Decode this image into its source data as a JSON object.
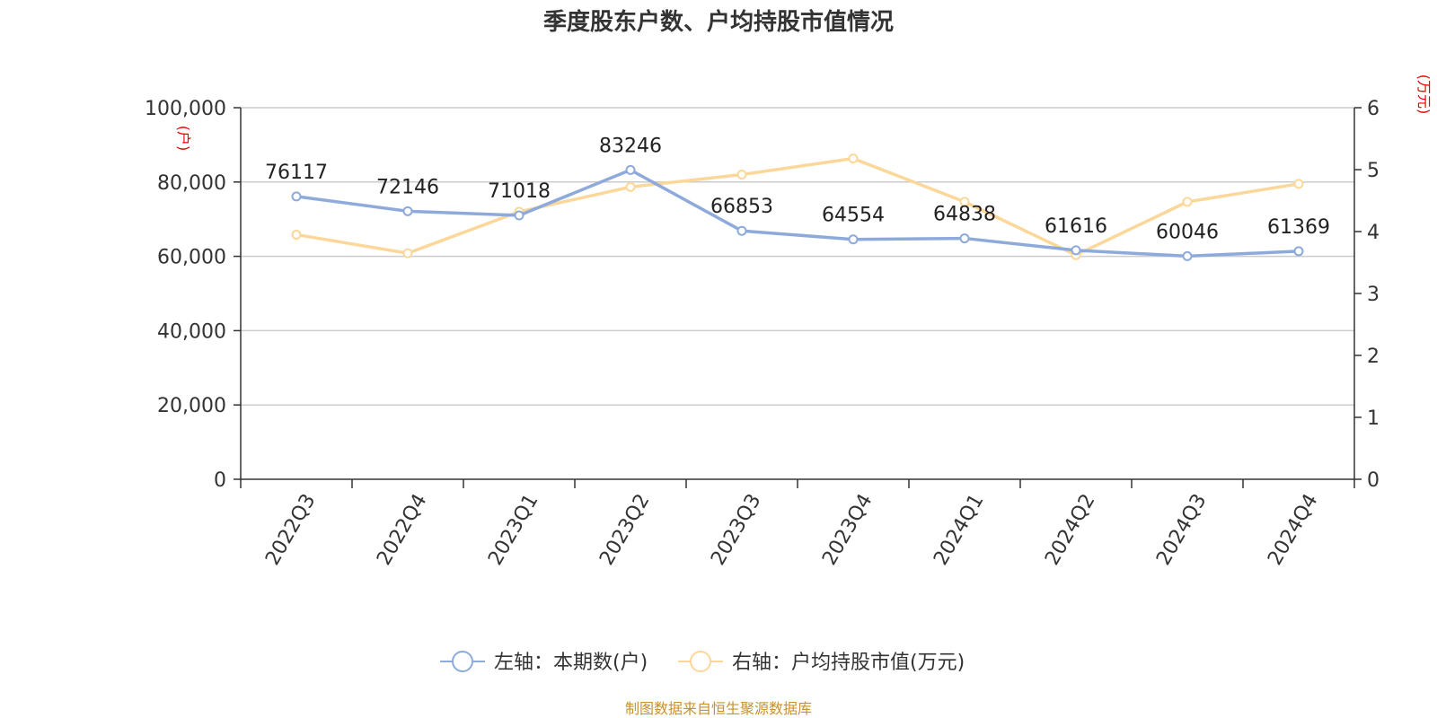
{
  "chart_data": {
    "type": "line",
    "title": "季度股东户数、户均持股市值情况",
    "categories": [
      "2022Q3",
      "2022Q4",
      "2023Q1",
      "2023Q2",
      "2023Q3",
      "2023Q4",
      "2024Q1",
      "2024Q2",
      "2024Q3",
      "2024Q4"
    ],
    "left_axis": {
      "unit": "(户)",
      "ylim": [
        0,
        100000
      ],
      "ticks": [
        0,
        20000,
        40000,
        60000,
        80000,
        100000
      ],
      "tick_labels": [
        "0",
        "20,000",
        "40,000",
        "60,000",
        "80,000",
        "100,000"
      ]
    },
    "right_axis": {
      "unit": "(万元)",
      "ylim": [
        0,
        6
      ],
      "ticks": [
        0,
        1,
        2,
        3,
        4,
        5,
        6
      ],
      "tick_labels": [
        "0",
        "1",
        "2",
        "3",
        "4",
        "5",
        "6"
      ]
    },
    "series": [
      {
        "name": "左轴：本期数(户)",
        "axis": "left",
        "color": "#8eaadb",
        "values": [
          76117,
          72146,
          71018,
          83246,
          66853,
          64554,
          64838,
          61616,
          60046,
          61369
        ],
        "labels": [
          "76117",
          "72146",
          "71018",
          "83246",
          "66853",
          "64554",
          "64838",
          "61616",
          "60046",
          "61369"
        ]
      },
      {
        "name": "右轴：户均持股市值(万元)",
        "axis": "right",
        "color": "#fbd899",
        "values": [
          3.95,
          3.65,
          4.32,
          4.72,
          4.92,
          5.18,
          4.48,
          3.62,
          4.48,
          4.77
        ]
      }
    ],
    "grid": true,
    "legend": "bottom-center",
    "source": "制图数据来自恒生聚源数据库"
  }
}
